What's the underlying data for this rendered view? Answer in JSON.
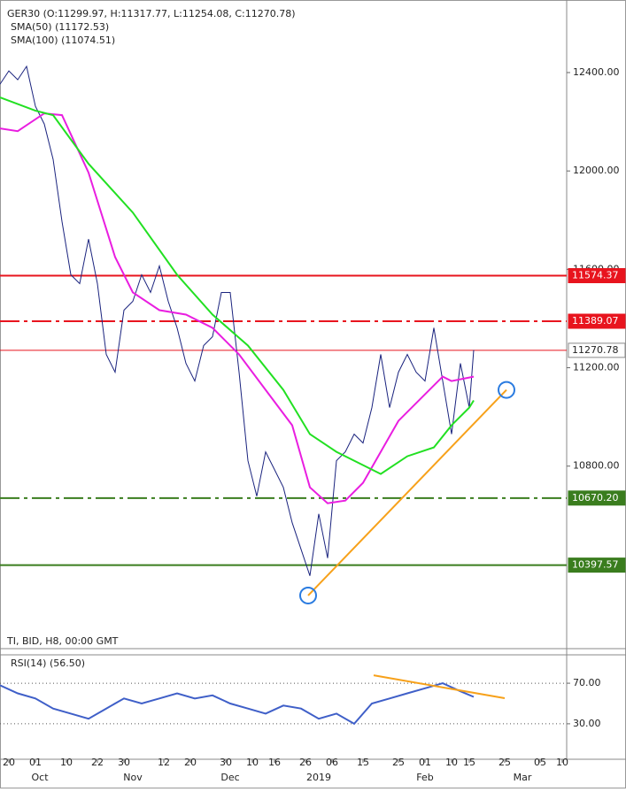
{
  "chart_data": [
    {
      "type": "line",
      "title": "GER30 (O:11299.97, H:11317.77, L:11254.08, C:11270.78)",
      "subtitle": "TI, BID, H8, 00:00 GMT",
      "xlim": [
        0,
        128
      ],
      "ylim": [
        10058,
        12677
      ],
      "yticks": [
        {
          "value": 12400,
          "label": "12400.00"
        },
        {
          "value": 12000,
          "label": "12000.00"
        },
        {
          "value": 11600,
          "label": "11600.00"
        },
        {
          "value": 11200,
          "label": "11200.00"
        },
        {
          "value": 10800,
          "label": "10800.00"
        }
      ],
      "xticks": [
        {
          "value": 2,
          "label": "20"
        },
        {
          "value": 8,
          "label": "01"
        },
        {
          "value": 15,
          "label": "10"
        },
        {
          "value": 22,
          "label": "22"
        },
        {
          "value": 28,
          "label": "30"
        },
        {
          "value": 37,
          "label": "12"
        },
        {
          "value": 43,
          "label": "20"
        },
        {
          "value": 51,
          "label": "30"
        },
        {
          "value": 57,
          "label": "10"
        },
        {
          "value": 62,
          "label": "16"
        },
        {
          "value": 69,
          "label": "26"
        },
        {
          "value": 75,
          "label": "06"
        },
        {
          "value": 82,
          "label": "15"
        },
        {
          "value": 90,
          "label": "25"
        },
        {
          "value": 96,
          "label": "01"
        },
        {
          "value": 102,
          "label": "10"
        },
        {
          "value": 106,
          "label": "15"
        },
        {
          "value": 114,
          "label": "25"
        },
        {
          "value": 122,
          "label": "05"
        },
        {
          "value": 127,
          "label": "10"
        }
      ],
      "months": [
        {
          "value": 9,
          "label": "Oct"
        },
        {
          "value": 30,
          "label": "Nov"
        },
        {
          "value": 52,
          "label": "Dec"
        },
        {
          "value": 72,
          "label": "2019"
        },
        {
          "value": 96,
          "label": "Feb"
        },
        {
          "value": 118,
          "label": "Mar"
        }
      ],
      "series": [
        {
          "name": "GER30",
          "color": "#1a237e",
          "x": [
            0,
            2,
            4,
            6,
            8,
            10,
            12,
            14,
            16,
            18,
            20,
            22,
            24,
            26,
            28,
            30,
            32,
            34,
            36,
            38,
            40,
            42,
            44,
            46,
            48,
            50,
            52,
            54,
            56,
            58,
            60,
            62,
            64,
            66,
            68,
            70,
            72,
            74,
            76,
            78,
            80,
            82,
            84,
            86,
            88,
            90,
            92,
            94,
            96,
            98,
            100,
            102,
            104,
            106,
            107
          ],
          "values": [
            12353,
            12407,
            12371,
            12425,
            12263,
            12191,
            12047,
            11795,
            11578,
            11542,
            11723,
            11542,
            11254,
            11182,
            11434,
            11470,
            11578,
            11506,
            11614,
            11470,
            11362,
            11218,
            11146,
            11290,
            11326,
            11506,
            11506,
            11182,
            10822,
            10678,
            10858,
            10786,
            10714,
            10570,
            10462,
            10354,
            10606,
            10426,
            10822,
            10858,
            10930,
            10894,
            11038,
            11254,
            11038,
            11182,
            11254,
            11182,
            11146,
            11362,
            11146,
            10930,
            11218,
            11038,
            11272
          ]
        },
        {
          "name": "SMA(50) (11172.53)",
          "color": "#e91ee0",
          "x": [
            0,
            4,
            10,
            14,
            20,
            26,
            30,
            36,
            42,
            48,
            54,
            60,
            66,
            70,
            74,
            78,
            82,
            86,
            90,
            96,
            100,
            102,
            107
          ],
          "values": [
            12173,
            12162,
            12234,
            12227,
            11993,
            11650,
            11506,
            11434,
            11416,
            11362,
            11254,
            11110,
            10966,
            10714,
            10649,
            10660,
            10732,
            10858,
            10984,
            11092,
            11164,
            11146,
            11164
          ]
        },
        {
          "name": "SMA(100) (11074.51)",
          "color": "#22e022",
          "x": [
            0,
            8,
            12,
            20,
            30,
            40,
            48,
            56,
            64,
            70,
            76,
            82,
            86,
            92,
            98,
            102,
            106,
            107
          ],
          "values": [
            12299,
            12245,
            12227,
            12029,
            11831,
            11578,
            11416,
            11290,
            11110,
            10930,
            10858,
            10804,
            10768,
            10840,
            10876,
            10966,
            11038,
            11067
          ]
        }
      ],
      "levels": [
        {
          "value": 11574.37,
          "label": "11574.37",
          "color": "#e8141e",
          "style": "solid"
        },
        {
          "value": 11389.07,
          "label": "11389.07",
          "color": "#e8141e",
          "style": "dashdot"
        },
        {
          "value": 11270.78,
          "label": "11270.78",
          "color": "#e8141e",
          "style": "thin"
        },
        {
          "value": 10670.2,
          "label": "10670.20",
          "color": "#3a7d1e",
          "style": "dashdot"
        },
        {
          "value": 10397.57,
          "label": "10397.57",
          "color": "#3a7d1e",
          "style": "solid"
        }
      ],
      "trendlines": [
        {
          "x": [
            69.6,
            114.4
          ],
          "values": [
            10274,
            11110
          ],
          "color": "#f7a11a"
        }
      ]
    },
    {
      "type": "line",
      "title": "RSI(14) (56.50)",
      "xlim": [
        0,
        128
      ],
      "ylim": [
        -5,
        98
      ],
      "yticks": [
        {
          "value": 70,
          "label": "70.00"
        },
        {
          "value": 30,
          "label": "30.00"
        }
      ],
      "series": [
        {
          "name": "RSI(14)",
          "color": "#3f5fc8",
          "x": [
            0,
            4,
            8,
            12,
            16,
            20,
            24,
            28,
            32,
            36,
            40,
            44,
            48,
            52,
            56,
            60,
            64,
            68,
            72,
            76,
            80,
            84,
            88,
            92,
            96,
            100,
            104,
            107
          ],
          "values": [
            68,
            60,
            55,
            45,
            40,
            35,
            45,
            55,
            50,
            55,
            60,
            55,
            58,
            50,
            45,
            40,
            48,
            45,
            35,
            40,
            30,
            50,
            55,
            60,
            65,
            70,
            62,
            56.5
          ]
        }
      ],
      "trendlines": [
        {
          "x": [
            84.4,
            114
          ],
          "values": [
            77.8,
            55.2
          ],
          "color": "#f7a11a"
        }
      ]
    }
  ]
}
